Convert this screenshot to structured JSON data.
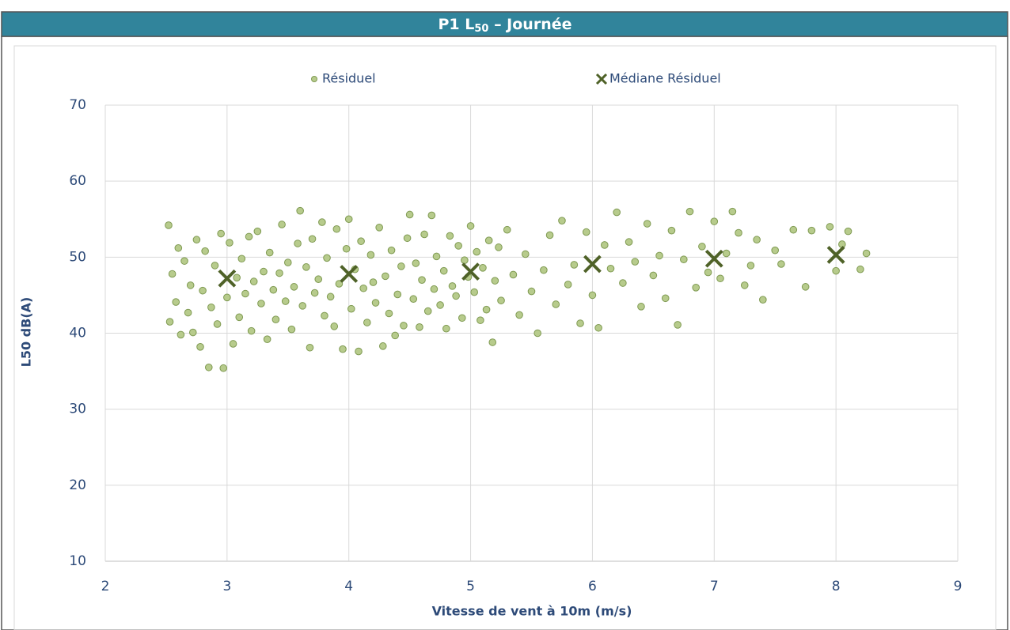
{
  "chart_data": {
    "type": "scatter",
    "title": [
      "P1 L",
      "50",
      " – Journée"
    ],
    "xlabel": "Vitesse de vent à 10m (m/s)",
    "ylabel": "L50 dB(A)",
    "xlim": [
      2,
      9
    ],
    "xticks": [
      2,
      3,
      4,
      5,
      6,
      7,
      8,
      9
    ],
    "ylim": [
      10,
      70
    ],
    "yticks": [
      10,
      20,
      30,
      40,
      50,
      60,
      70
    ],
    "grid": true,
    "legend": "top",
    "series": [
      {
        "name": "Résiduel",
        "color": "#b7cb8c",
        "marker": "circle",
        "x": [
          2.52,
          2.53,
          2.55,
          2.58,
          2.6,
          2.62,
          2.65,
          2.68,
          2.7,
          2.72,
          2.75,
          2.78,
          2.8,
          2.82,
          2.85,
          2.87,
          2.9,
          2.92,
          2.95,
          2.97,
          3.0,
          3.02,
          3.05,
          3.08,
          3.1,
          3.12,
          3.15,
          3.18,
          3.2,
          3.22,
          3.25,
          3.28,
          3.3,
          3.33,
          3.35,
          3.38,
          3.4,
          3.43,
          3.45,
          3.48,
          3.5,
          3.53,
          3.55,
          3.58,
          3.6,
          3.62,
          3.65,
          3.68,
          3.7,
          3.72,
          3.75,
          3.78,
          3.8,
          3.82,
          3.85,
          3.88,
          3.9,
          3.92,
          3.95,
          3.98,
          4.0,
          4.02,
          4.05,
          4.08,
          4.1,
          4.12,
          4.15,
          4.18,
          4.2,
          4.22,
          4.25,
          4.28,
          4.3,
          4.33,
          4.35,
          4.38,
          4.4,
          4.43,
          4.45,
          4.48,
          4.5,
          4.53,
          4.55,
          4.58,
          4.6,
          4.62,
          4.65,
          4.68,
          4.7,
          4.72,
          4.75,
          4.78,
          4.8,
          4.83,
          4.85,
          4.88,
          4.9,
          4.93,
          4.95,
          4.98,
          5.0,
          5.03,
          5.05,
          5.08,
          5.1,
          5.13,
          5.15,
          5.18,
          5.2,
          5.23,
          5.25,
          5.3,
          5.35,
          5.4,
          5.45,
          5.5,
          5.55,
          5.6,
          5.65,
          5.7,
          5.75,
          5.8,
          5.85,
          5.9,
          5.95,
          6.0,
          6.05,
          6.1,
          6.15,
          6.2,
          6.25,
          6.3,
          6.35,
          6.4,
          6.45,
          6.5,
          6.55,
          6.6,
          6.65,
          6.7,
          6.75,
          6.8,
          6.85,
          6.9,
          6.95,
          7.0,
          7.05,
          7.1,
          7.15,
          7.2,
          7.25,
          7.3,
          7.35,
          7.4,
          7.5,
          7.55,
          7.65,
          7.75,
          7.8,
          7.95,
          8.0,
          8.05,
          8.1,
          8.2,
          8.25
        ],
        "values": [
          54.2,
          41.5,
          47.8,
          44.1,
          51.2,
          39.8,
          49.5,
          42.7,
          46.3,
          40.1,
          52.3,
          38.2,
          45.6,
          50.8,
          35.5,
          43.4,
          48.9,
          41.2,
          53.1,
          35.4,
          44.7,
          51.9,
          38.6,
          47.3,
          42.1,
          49.8,
          45.2,
          52.7,
          40.3,
          46.8,
          53.4,
          43.9,
          48.1,
          39.2,
          50.6,
          45.7,
          41.8,
          47.9,
          54.3,
          44.2,
          49.3,
          40.5,
          46.1,
          51.8,
          56.1,
          43.6,
          48.7,
          38.1,
          52.4,
          45.3,
          47.1,
          54.6,
          42.3,
          49.9,
          44.8,
          40.9,
          53.7,
          46.5,
          37.9,
          51.1,
          55.0,
          43.2,
          48.4,
          37.6,
          52.1,
          45.9,
          41.4,
          50.3,
          46.7,
          44.0,
          53.9,
          38.3,
          47.5,
          42.6,
          50.9,
          39.7,
          45.1,
          48.8,
          41.0,
          52.5,
          55.6,
          44.5,
          49.2,
          40.8,
          47.0,
          53.0,
          42.9,
          55.5,
          45.8,
          50.1,
          43.7,
          48.2,
          40.6,
          52.8,
          46.2,
          44.9,
          51.5,
          42.0,
          49.6,
          47.4,
          54.1,
          45.4,
          50.7,
          41.7,
          48.6,
          43.1,
          52.2,
          38.8,
          46.9,
          51.3,
          44.3,
          53.6,
          47.7,
          42.4,
          50.4,
          45.5,
          40.0,
          48.3,
          52.9,
          43.8,
          54.8,
          46.4,
          49.0,
          41.3,
          53.3,
          45.0,
          40.7,
          51.6,
          48.5,
          55.9,
          46.6,
          52.0,
          49.4,
          43.5,
          54.4,
          47.6,
          50.2,
          44.6,
          53.5,
          41.1,
          49.7,
          56.0,
          46.0,
          51.4,
          48.0,
          54.7,
          47.2,
          50.5,
          56.0,
          53.2,
          46.3,
          48.9,
          52.3,
          44.4,
          50.9,
          49.1,
          53.6,
          46.1,
          53.5,
          54.0,
          48.2,
          51.7,
          53.4,
          48.4,
          50.5
        ]
      },
      {
        "name": "Médiane Résiduel",
        "color": "#4f6228",
        "marker": "x",
        "x": [
          3,
          4,
          5,
          6,
          7,
          8
        ],
        "values": [
          47.2,
          47.8,
          48.1,
          49.1,
          49.8,
          50.3
        ]
      }
    ]
  }
}
